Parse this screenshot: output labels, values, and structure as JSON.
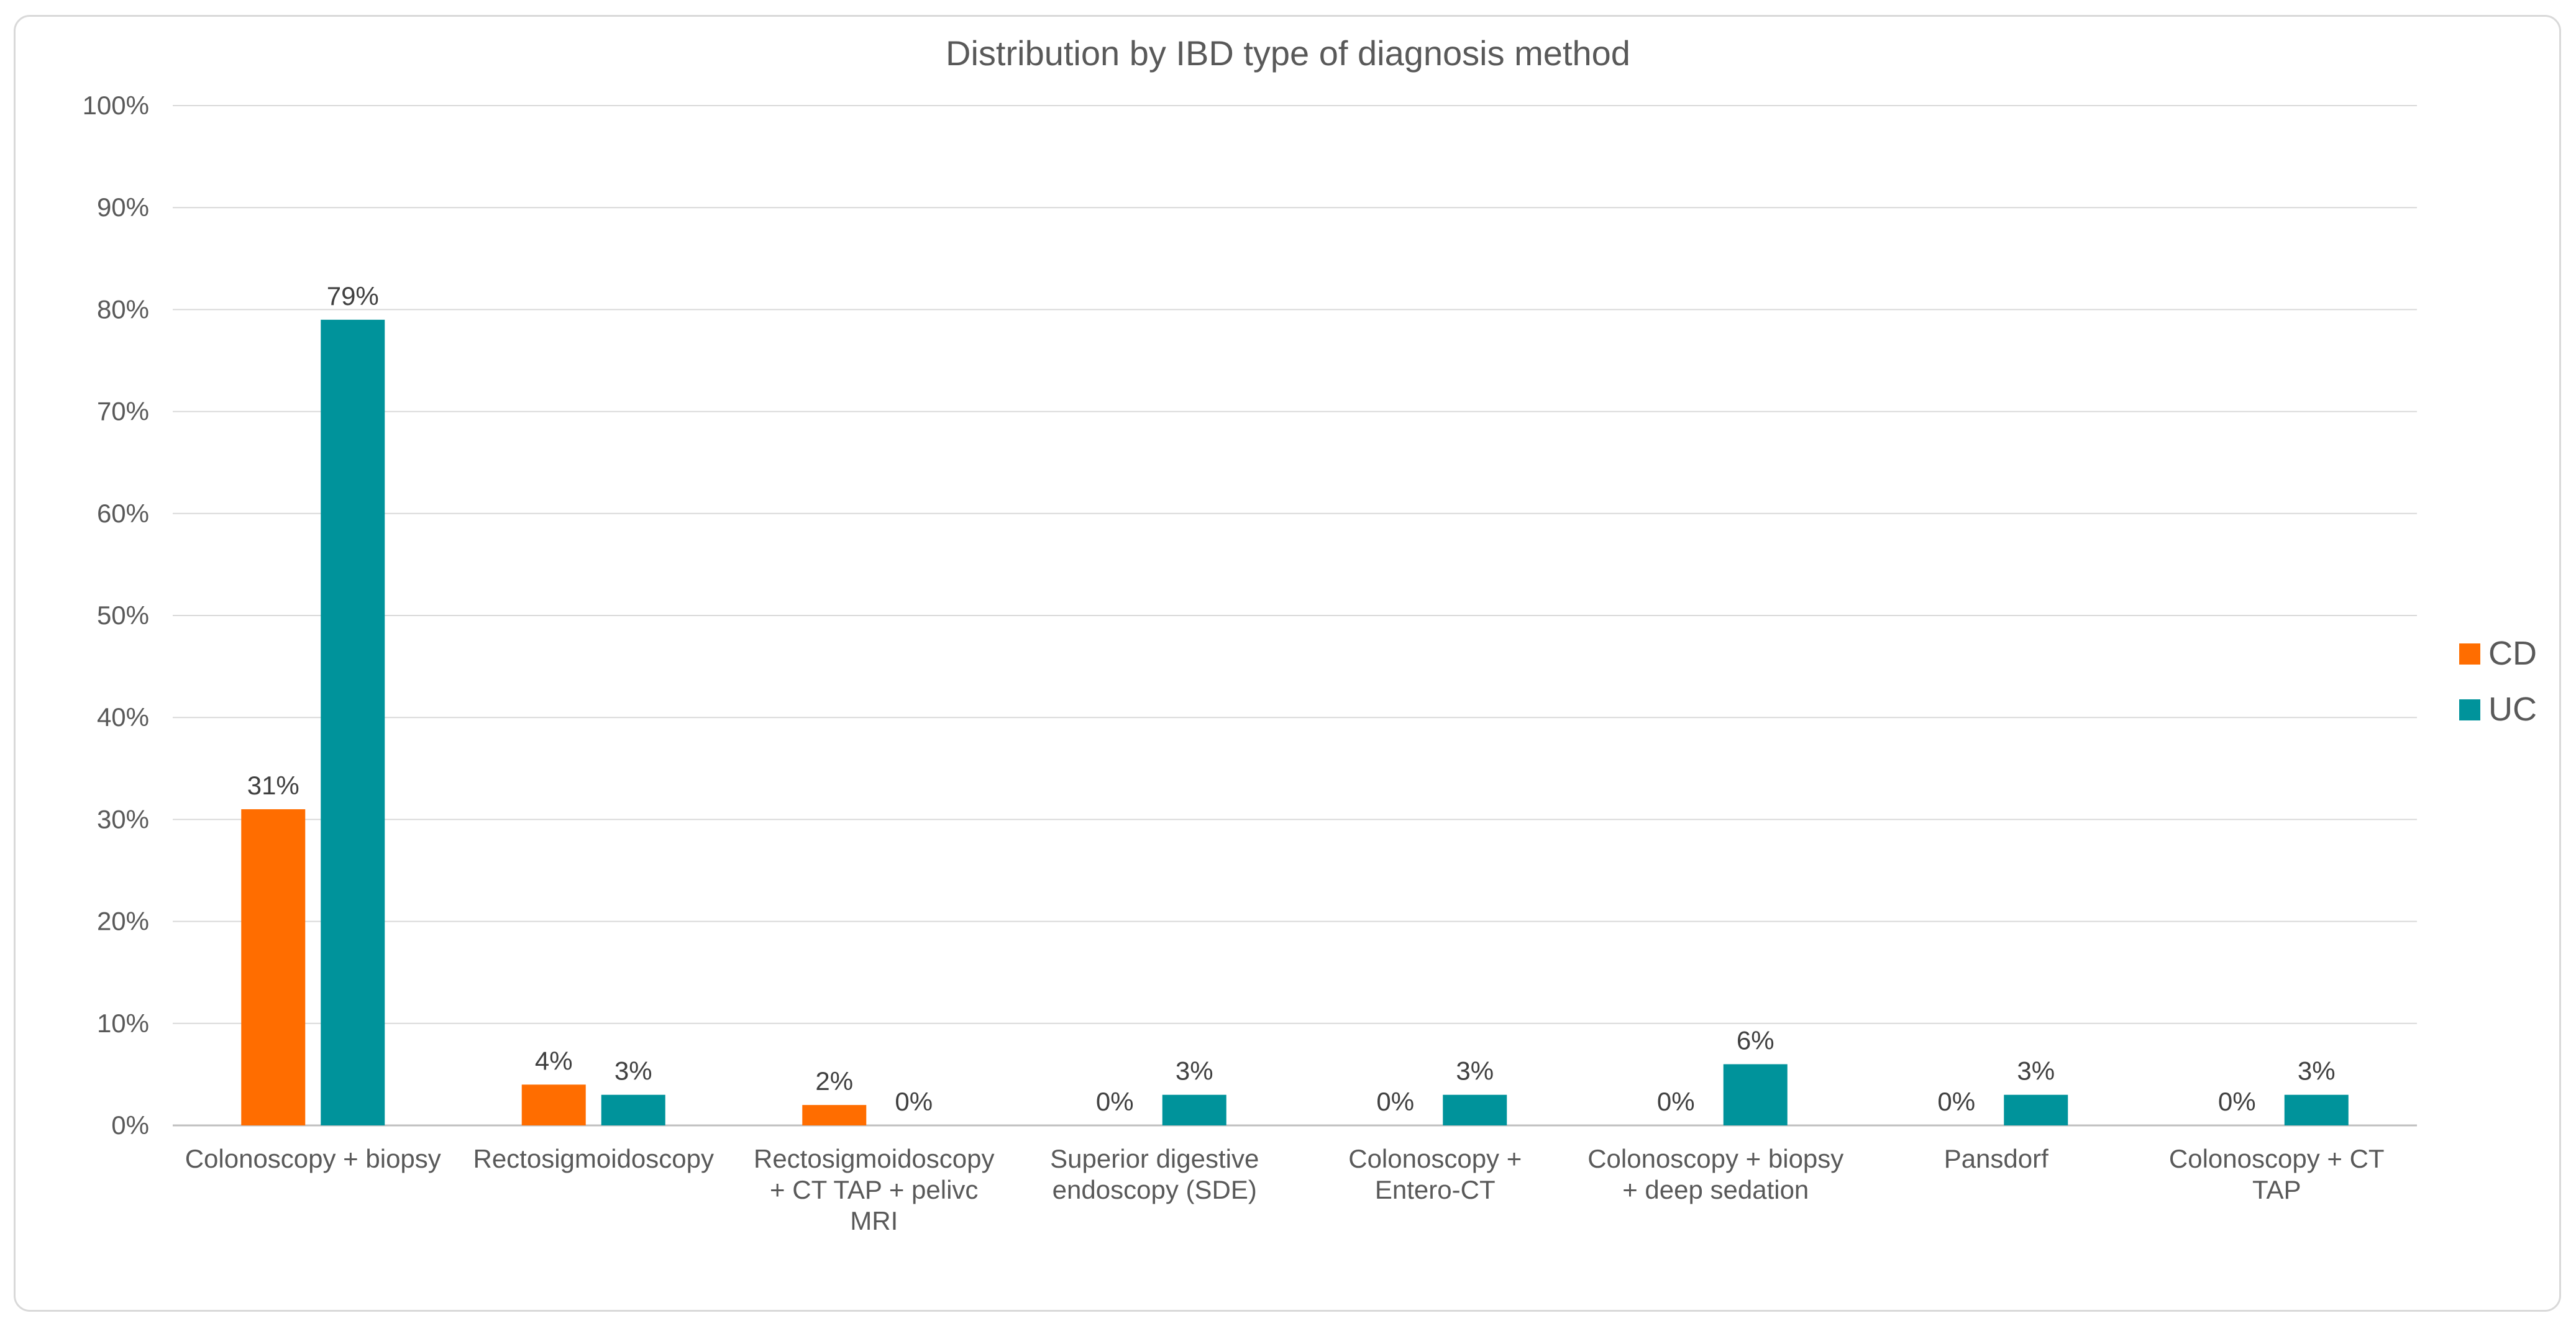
{
  "chart_data": {
    "type": "bar",
    "title": "Distribution by IBD type of diagnosis method",
    "xlabel": "",
    "ylabel": "",
    "ylim": [
      0,
      100
    ],
    "yticks": [
      0,
      10,
      20,
      30,
      40,
      50,
      60,
      70,
      80,
      90,
      100
    ],
    "ytick_format": "%",
    "grid": true,
    "legend_position": "right",
    "categories": [
      [
        "Colonoscopy + biopsy"
      ],
      [
        "Rectosigmoidoscopy"
      ],
      [
        "Rectosigmoidoscopy",
        "+ CT TAP + pelivc",
        "MRI"
      ],
      [
        "Superior digestive",
        "endoscopy (SDE)"
      ],
      [
        "Colonoscopy +",
        "Entero-CT"
      ],
      [
        "Colonoscopy + biopsy",
        "+ deep sedation"
      ],
      [
        "Pansdorf"
      ],
      [
        "Colonoscopy + CT",
        "TAP"
      ]
    ],
    "series": [
      {
        "name": "CD",
        "color": "#ff6d00",
        "values": [
          31,
          4,
          2,
          0,
          0,
          0,
          0,
          0
        ],
        "labels": [
          "31%",
          "4%",
          "2%",
          "0%",
          "0%",
          "0%",
          "0%",
          "0%"
        ]
      },
      {
        "name": "UC",
        "color": "#00939b",
        "values": [
          79,
          3,
          0,
          3,
          3,
          6,
          3,
          3
        ],
        "labels": [
          "79%",
          "3%",
          "0%",
          "3%",
          "3%",
          "6%",
          "3%",
          "3%"
        ]
      }
    ]
  }
}
